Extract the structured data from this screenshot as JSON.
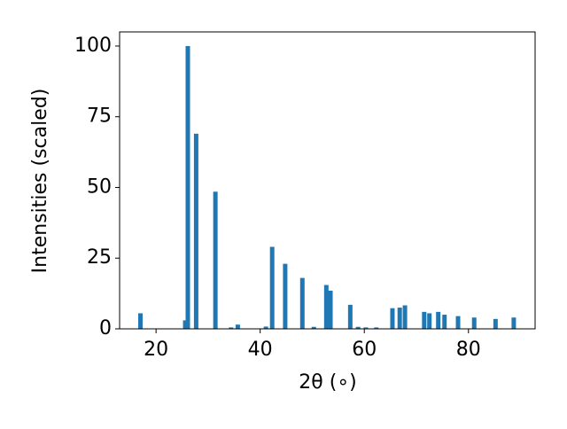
{
  "chart_data": {
    "type": "bar",
    "x_label": "2θ (∘)",
    "y_label": "Intensities (scaled)",
    "x": [
      17.0,
      25.6,
      26.1,
      27.7,
      31.4,
      34.4,
      35.7,
      41.1,
      42.3,
      44.8,
      48.1,
      50.3,
      52.7,
      53.5,
      57.3,
      58.8,
      60.3,
      62.3,
      65.4,
      66.8,
      67.8,
      71.5,
      72.5,
      74.2,
      75.4,
      78.0,
      81.1,
      85.2,
      88.7
    ],
    "values": [
      5.5,
      3,
      100,
      69,
      48.5,
      0.5,
      1.5,
      0.8,
      29,
      23,
      18,
      0.7,
      15.5,
      13.5,
      8.5,
      0.7,
      0.5,
      0.5,
      7.3,
      7.5,
      8.3,
      6,
      5.5,
      6,
      5,
      4.5,
      4,
      3.5,
      4
    ],
    "color": "#1f77b4",
    "xlim": [
      13.0,
      92.8
    ],
    "ylim": [
      0,
      105
    ],
    "xticks": [
      20,
      40,
      60,
      80
    ],
    "yticks": [
      0,
      25,
      50,
      75,
      100
    ]
  }
}
